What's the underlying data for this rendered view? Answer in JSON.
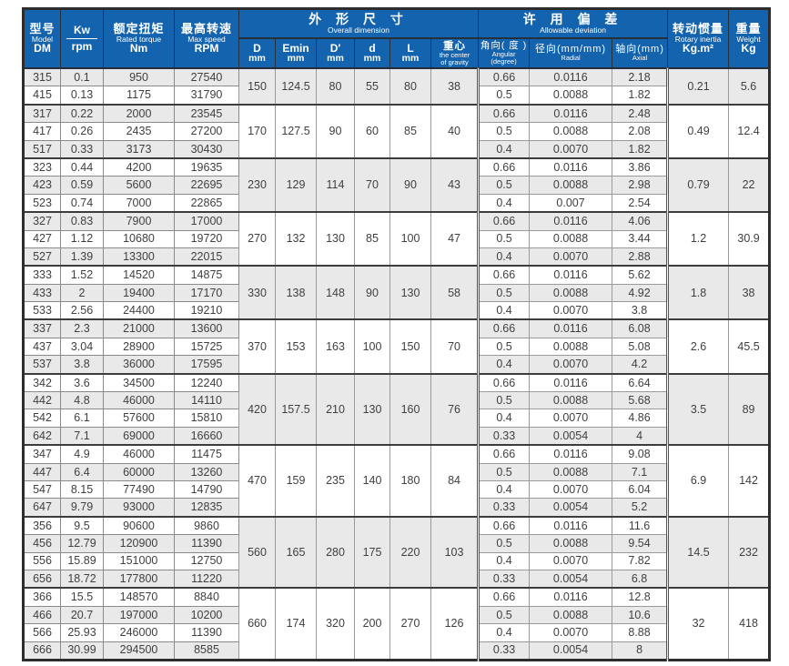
{
  "colors": {
    "header_blue": "#1463ae",
    "band_gray": "#e9e9e9",
    "text_dark": "#3f3f3f",
    "outer_border": "#2d2d2d"
  },
  "header": {
    "model": {
      "zh": "型号",
      "en": "Model",
      "sub": "DM"
    },
    "kw": {
      "top": "Kw",
      "bottom": "rpm"
    },
    "torque": {
      "zh": "额定扭矩",
      "en": "Rated torque",
      "unit": "Nm"
    },
    "max_speed": {
      "zh": "最高转速",
      "en": "Max speed",
      "unit": "RPM"
    },
    "overall_dimension": {
      "zh": "外 形 尺 寸",
      "en": "Overall dimension"
    },
    "dim_cols": [
      {
        "name": "D",
        "unit": "mm"
      },
      {
        "name": "Emin",
        "unit": "mm"
      },
      {
        "name": "D′",
        "unit": "mm"
      },
      {
        "name": "d",
        "unit": "mm"
      },
      {
        "name": "L",
        "unit": "mm"
      },
      {
        "zh": "重心",
        "en1": "the center",
        "en2": "of gravity"
      }
    ],
    "allowable_deviation": {
      "zh": "许 用 偏 差",
      "en": "Allowable deviation"
    },
    "dev_cols": [
      {
        "label": "角向( 度 )",
        "en1": "Angular",
        "en2": "(degree)"
      },
      {
        "label": "径向(mm/mm)",
        "en1": "Radial",
        "en2": ""
      },
      {
        "label": "轴向(mm)",
        "en1": "Axial",
        "en2": ""
      }
    ],
    "inertia": {
      "zh": "转动惯量",
      "en": "Rotary inertia",
      "unit": "Kg.m²"
    },
    "weight": {
      "zh": "重量",
      "en": "Weight",
      "unit": "Kg"
    }
  },
  "bands": [
    {
      "dims": [
        "150",
        "124.5",
        "80",
        "55",
        "80",
        "38"
      ],
      "inertia": "0.21",
      "weight": "5.6",
      "rows": [
        {
          "model": "315",
          "kw": "0.1",
          "torque": "950",
          "rpm": "27540",
          "angular": "0.66",
          "radial": "0.0116",
          "axial": "2.18"
        },
        {
          "model": "415",
          "kw": "0.13",
          "torque": "1175",
          "rpm": "31790",
          "angular": "0.5",
          "radial": "0.0088",
          "axial": "1.82"
        }
      ]
    },
    {
      "dims": [
        "170",
        "127.5",
        "90",
        "60",
        "85",
        "40"
      ],
      "inertia": "0.49",
      "weight": "12.4",
      "rows": [
        {
          "model": "317",
          "kw": "0.22",
          "torque": "2000",
          "rpm": "23545",
          "angular": "0.66",
          "radial": "0.0116",
          "axial": "2.48"
        },
        {
          "model": "417",
          "kw": "0.26",
          "torque": "2435",
          "rpm": "27200",
          "angular": "0.5",
          "radial": "0.0088",
          "axial": "2.08"
        },
        {
          "model": "517",
          "kw": "0.33",
          "torque": "3173",
          "rpm": "30430",
          "angular": "0.4",
          "radial": "0.0070",
          "axial": "1.82"
        }
      ]
    },
    {
      "dims": [
        "230",
        "129",
        "114",
        "70",
        "90",
        "43"
      ],
      "inertia": "0.79",
      "weight": "22",
      "rows": [
        {
          "model": "323",
          "kw": "0.44",
          "torque": "4200",
          "rpm": "19635",
          "angular": "0.66",
          "radial": "0.0116",
          "axial": "3.86"
        },
        {
          "model": "423",
          "kw": "0.59",
          "torque": "5600",
          "rpm": "22695",
          "angular": "0.5",
          "radial": "0.0088",
          "axial": "2.98"
        },
        {
          "model": "523",
          "kw": "0.74",
          "torque": "7000",
          "rpm": "22865",
          "angular": "0.4",
          "radial": "0.007",
          "axial": "2.54"
        }
      ]
    },
    {
      "dims": [
        "270",
        "132",
        "130",
        "85",
        "100",
        "47"
      ],
      "inertia": "1.2",
      "weight": "30.9",
      "rows": [
        {
          "model": "327",
          "kw": "0.83",
          "torque": "7900",
          "rpm": "17000",
          "angular": "0.66",
          "radial": "0.0116",
          "axial": "4.06"
        },
        {
          "model": "427",
          "kw": "1.12",
          "torque": "10680",
          "rpm": "19720",
          "angular": "0.5",
          "radial": "0.0088",
          "axial": "3.44"
        },
        {
          "model": "527",
          "kw": "1.39",
          "torque": "13300",
          "rpm": "22015",
          "angular": "0.4",
          "radial": "0.0070",
          "axial": "2.88"
        }
      ]
    },
    {
      "dims": [
        "330",
        "138",
        "148",
        "90",
        "130",
        "58"
      ],
      "inertia": "1.8",
      "weight": "38",
      "rows": [
        {
          "model": "333",
          "kw": "1.52",
          "torque": "14520",
          "rpm": "14875",
          "angular": "0.66",
          "radial": "0.0116",
          "axial": "5.62"
        },
        {
          "model": "433",
          "kw": "2",
          "torque": "19400",
          "rpm": "17170",
          "angular": "0.5",
          "radial": "0.0088",
          "axial": "4.92"
        },
        {
          "model": "533",
          "kw": "2.56",
          "torque": "24400",
          "rpm": "19210",
          "angular": "0.4",
          "radial": "0.0070",
          "axial": "3.8"
        }
      ]
    },
    {
      "dims": [
        "370",
        "153",
        "163",
        "100",
        "150",
        "70"
      ],
      "inertia": "2.6",
      "weight": "45.5",
      "rows": [
        {
          "model": "337",
          "kw": "2.3",
          "torque": "21000",
          "rpm": "13600",
          "angular": "0.66",
          "radial": "0.0116",
          "axial": "6.08"
        },
        {
          "model": "437",
          "kw": "3.04",
          "torque": "28900",
          "rpm": "15725",
          "angular": "0.5",
          "radial": "0.0088",
          "axial": "5.08"
        },
        {
          "model": "537",
          "kw": "3.8",
          "torque": "36000",
          "rpm": "17595",
          "angular": "0.4",
          "radial": "0.0070",
          "axial": "4.2"
        }
      ]
    },
    {
      "dims": [
        "420",
        "157.5",
        "210",
        "130",
        "160",
        "76"
      ],
      "inertia": "3.5",
      "weight": "89",
      "rows": [
        {
          "model": "342",
          "kw": "3.6",
          "torque": "34500",
          "rpm": "12240",
          "angular": "0.66",
          "radial": "0.0116",
          "axial": "6.64"
        },
        {
          "model": "442",
          "kw": "4.8",
          "torque": "46000",
          "rpm": "14110",
          "angular": "0.5",
          "radial": "0.0088",
          "axial": "5.68"
        },
        {
          "model": "542",
          "kw": "6.1",
          "torque": "57600",
          "rpm": "15810",
          "angular": "0.4",
          "radial": "0.0070",
          "axial": "4.86"
        },
        {
          "model": "642",
          "kw": "7.1",
          "torque": "69000",
          "rpm": "16660",
          "angular": "0.33",
          "radial": "0.0054",
          "axial": "4"
        }
      ]
    },
    {
      "dims": [
        "470",
        "159",
        "235",
        "140",
        "180",
        "84"
      ],
      "inertia": "6.9",
      "weight": "142",
      "rows": [
        {
          "model": "347",
          "kw": "4.9",
          "torque": "46000",
          "rpm": "11475",
          "angular": "0.66",
          "radial": "0.0116",
          "axial": "9.08"
        },
        {
          "model": "447",
          "kw": "6.4",
          "torque": "60000",
          "rpm": "13260",
          "angular": "0.5",
          "radial": "0.0088",
          "axial": "7.1"
        },
        {
          "model": "547",
          "kw": "8.15",
          "torque": "77490",
          "rpm": "14790",
          "angular": "0.4",
          "radial": "0.0070",
          "axial": "6.04"
        },
        {
          "model": "647",
          "kw": "9.79",
          "torque": "93000",
          "rpm": "12835",
          "angular": "0.33",
          "radial": "0.0054",
          "axial": "5.2"
        }
      ]
    },
    {
      "dims": [
        "560",
        "165",
        "280",
        "175",
        "220",
        "103"
      ],
      "inertia": "14.5",
      "weight": "232",
      "rows": [
        {
          "model": "356",
          "kw": "9.5",
          "torque": "90600",
          "rpm": "9860",
          "angular": "0.66",
          "radial": "0.0116",
          "axial": "11.6"
        },
        {
          "model": "456",
          "kw": "12.79",
          "torque": "120900",
          "rpm": "11390",
          "angular": "0.5",
          "radial": "0.0088",
          "axial": "9.54"
        },
        {
          "model": "556",
          "kw": "15.89",
          "torque": "151000",
          "rpm": "12750",
          "angular": "0.4",
          "radial": "0.0070",
          "axial": "7.82"
        },
        {
          "model": "656",
          "kw": "18.72",
          "torque": "177800",
          "rpm": "11220",
          "angular": "0.33",
          "radial": "0.0054",
          "axial": "6.8"
        }
      ]
    },
    {
      "dims": [
        "660",
        "174",
        "320",
        "200",
        "270",
        "126"
      ],
      "inertia": "32",
      "weight": "418",
      "rows": [
        {
          "model": "366",
          "kw": "15.5",
          "torque": "148570",
          "rpm": "8840",
          "angular": "0.66",
          "radial": "0.0116",
          "axial": "12.8"
        },
        {
          "model": "466",
          "kw": "20.7",
          "torque": "197000",
          "rpm": "10200",
          "angular": "0.5",
          "radial": "0.0088",
          "axial": "10.6"
        },
        {
          "model": "566",
          "kw": "25.93",
          "torque": "246000",
          "rpm": "11390",
          "angular": "0.4",
          "radial": "0.0070",
          "axial": "8.88"
        },
        {
          "model": "666",
          "kw": "30.99",
          "torque": "294500",
          "rpm": "8585",
          "angular": "0.33",
          "radial": "0.0054",
          "axial": "8"
        }
      ]
    }
  ]
}
